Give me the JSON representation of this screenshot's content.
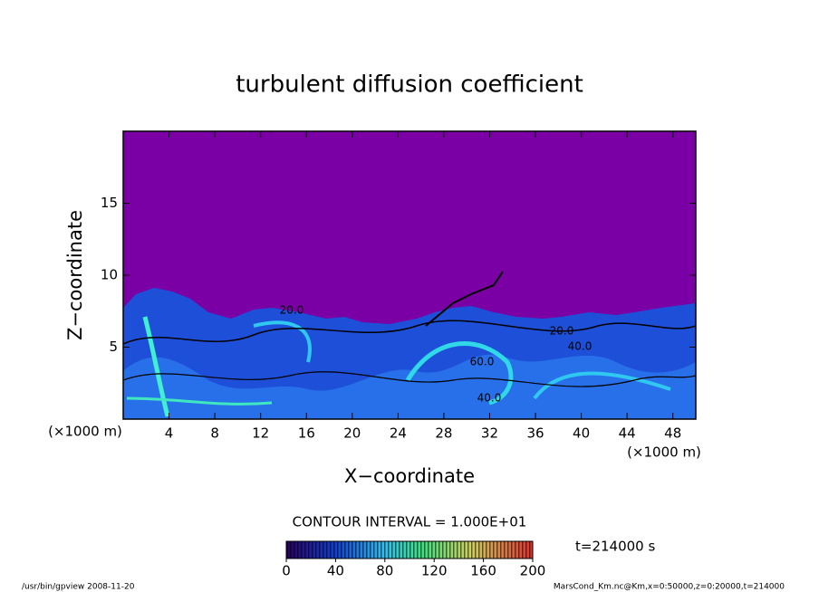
{
  "chart_data": {
    "type": "contour",
    "title": "turbulent diffusion coefficient",
    "x_label": "X−coordinate",
    "y_label": "Z−coordinate",
    "x_unit": "(×1000 m)",
    "y_unit": "(×1000 m)",
    "xlim": [
      0,
      50
    ],
    "xticks": [
      4,
      8,
      12,
      16,
      20,
      24,
      28,
      32,
      36,
      40,
      44,
      48
    ],
    "ylim": [
      0,
      20
    ],
    "yticks": [
      5,
      10,
      15
    ],
    "contour_interval": "CONTOUR INTERVAL = 1.000E+01",
    "time_label": "t=214000 s",
    "contour_labels": [
      "20.0",
      "20.0",
      "40.0",
      "60.0",
      "40.0"
    ],
    "colorbar": {
      "lim": [
        0,
        200
      ],
      "ticks": [
        0,
        40,
        80,
        120,
        160,
        200
      ]
    },
    "footer_left": "/usr/bin/gpview   2008-11-20",
    "footer_right": "MarsCond_Km.nc@Km,x=0:50000,z=0:20000,t=214000"
  }
}
